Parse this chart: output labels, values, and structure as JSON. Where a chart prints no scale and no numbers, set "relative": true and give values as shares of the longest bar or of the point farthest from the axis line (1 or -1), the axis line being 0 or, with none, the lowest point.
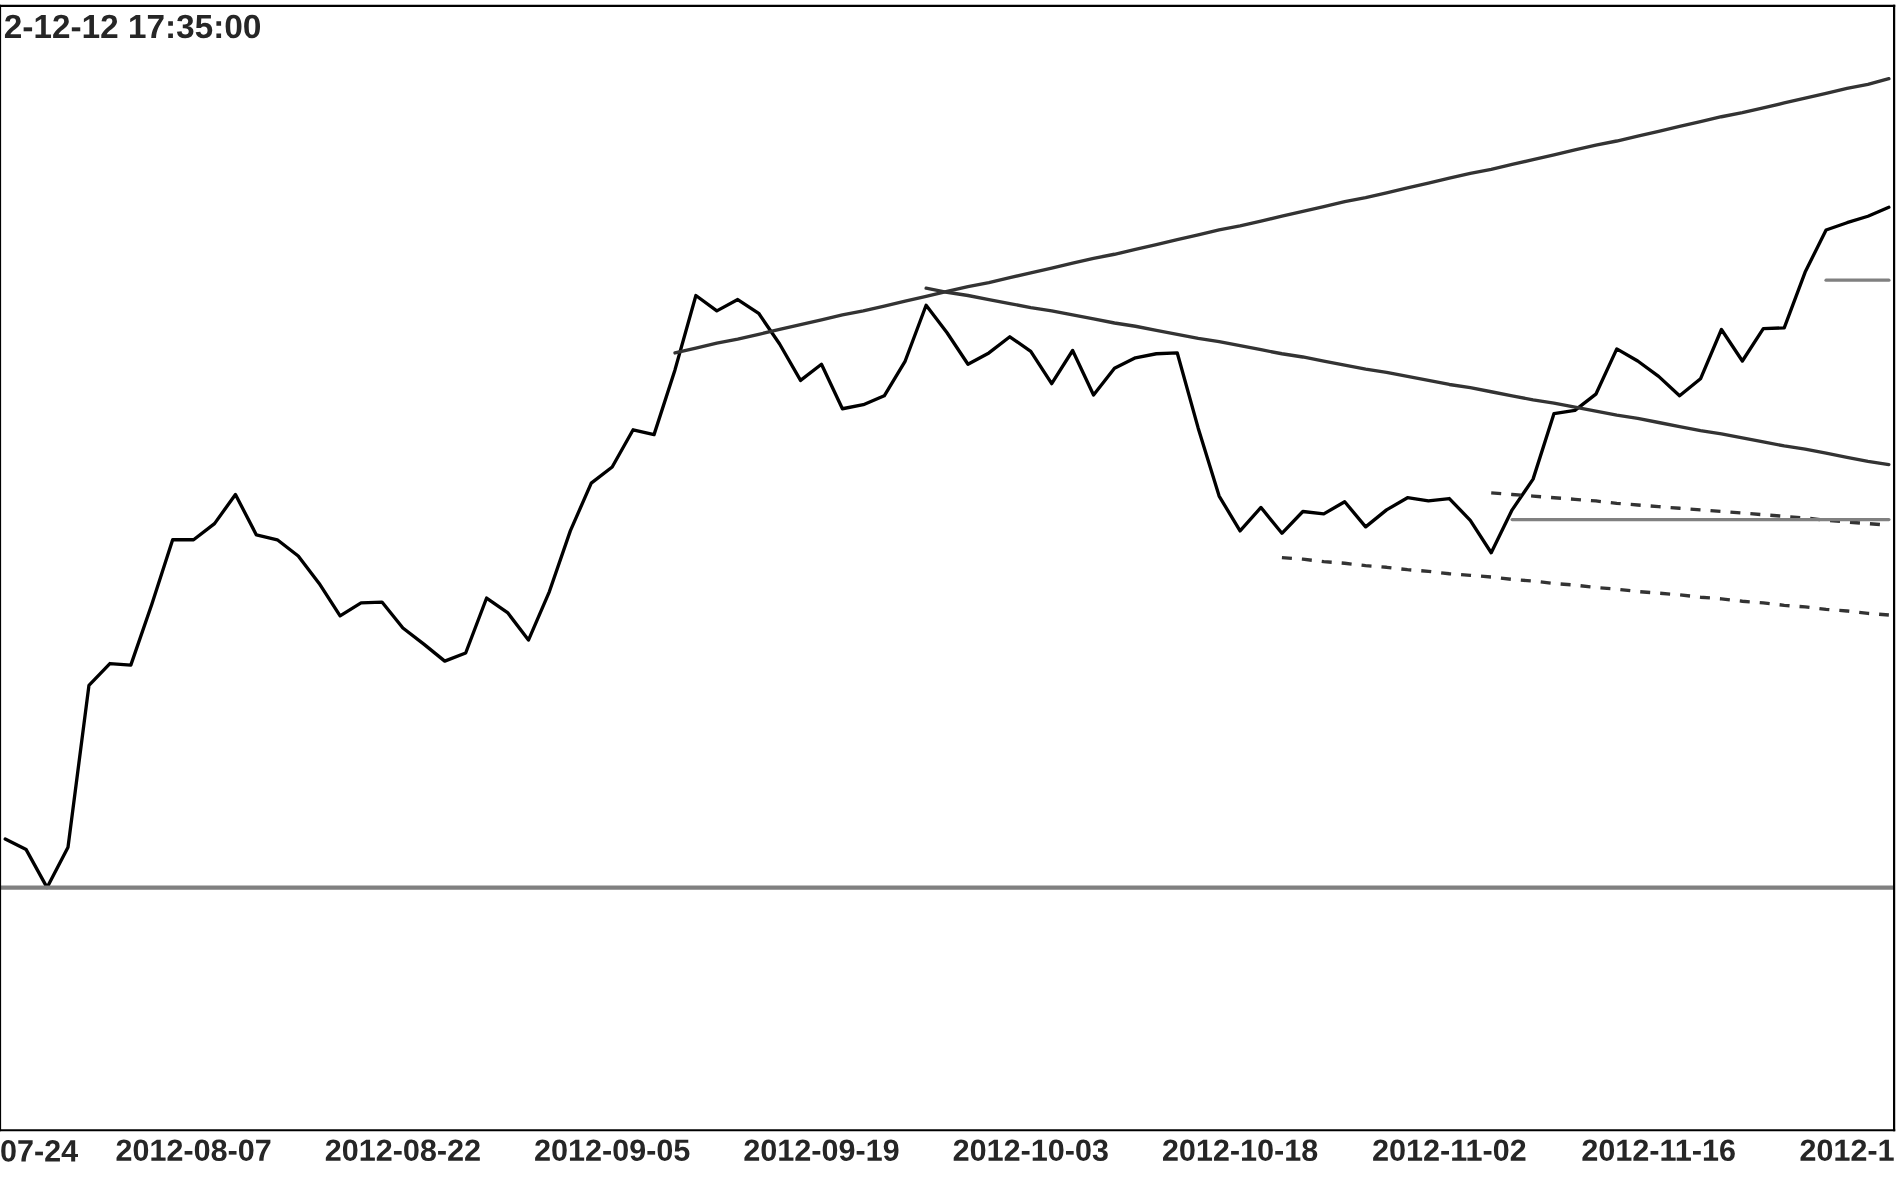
{
  "chart_data": {
    "type": "line",
    "relative": true,
    "title": "2-12-12 17:35:00",
    "annotations": [
      "07-24"
    ],
    "categories": [
      null,
      null,
      null,
      null,
      null,
      null,
      null,
      null,
      null,
      "2012-08-07",
      null,
      null,
      null,
      null,
      null,
      null,
      null,
      null,
      null,
      "2012-08-22",
      null,
      null,
      null,
      null,
      null,
      null,
      null,
      null,
      null,
      "2012-09-05",
      null,
      null,
      null,
      null,
      null,
      null,
      null,
      null,
      null,
      "2012-09-19",
      null,
      null,
      null,
      null,
      null,
      null,
      null,
      null,
      null,
      "2012-10-03",
      null,
      null,
      null,
      null,
      null,
      null,
      null,
      null,
      null,
      "2012-10-18",
      null,
      null,
      null,
      null,
      null,
      null,
      null,
      null,
      null,
      "2012-11-02",
      null,
      null,
      null,
      null,
      null,
      null,
      null,
      null,
      null,
      "2012-11-16",
      null,
      null,
      null,
      null,
      null,
      null,
      null,
      null,
      "2012-1",
      null,
      null
    ],
    "ref_lines": [
      {
        "axis": "y",
        "value": 0,
        "color": "#808080"
      }
    ],
    "series": [
      {
        "color": "#000000",
        "values": [
          0.06,
          0.047,
          0,
          0.05,
          0.25,
          0.277,
          0.275,
          0.35,
          0.43,
          0.43,
          0.45,
          0.486,
          0.436,
          0.43,
          0.41,
          0.376,
          0.336,
          0.352,
          0.353,
          0.321,
          0.301,
          0.28,
          0.29,
          0.358,
          0.34,
          0.306,
          0.366,
          0.441,
          0.5,
          0.52,
          0.566,
          0.56,
          0.64,
          0.732,
          0.713,
          0.727,
          0.71,
          0.672,
          0.627,
          0.647,
          0.592,
          0.597,
          0.608,
          0.651,
          0.72,
          0.686,
          0.647,
          0.661,
          0.681,
          0.663,
          0.623,
          0.664,
          0.609,
          0.642,
          0.655,
          0.66,
          0.661,
          0.568,
          0.484,
          0.441,
          0.47,
          0.438,
          0.465,
          0.462,
          0.477,
          0.446,
          0.467,
          0.482,
          0.478,
          0.481,
          0.454,
          0.414,
          0.467,
          0.505,
          0.586,
          0.59,
          0.61,
          0.666,
          0.651,
          0.632,
          0.608,
          0.629,
          0.69,
          0.651,
          0.691,
          0.692,
          0.761,
          0.813,
          0.822,
          0.83,
          0.841
        ]
      },
      {
        "color": "#333333",
        "values": [
          null,
          null,
          null,
          null,
          null,
          null,
          null,
          null,
          null,
          null,
          null,
          null,
          null,
          null,
          null,
          null,
          null,
          null,
          null,
          null,
          null,
          null,
          null,
          null,
          null,
          null,
          null,
          null,
          null,
          null,
          null,
          null,
          0.661,
          0.667,
          0.673,
          0.678,
          0.684,
          0.69,
          0.696,
          0.702,
          0.708,
          0.713,
          0.719,
          0.725,
          0.731,
          0.737,
          0.743,
          0.748,
          0.754,
          0.76,
          0.766,
          0.772,
          0.778,
          0.783,
          0.789,
          0.795,
          0.801,
          0.807,
          0.813,
          0.818,
          0.824,
          0.83,
          0.836,
          0.842,
          0.848,
          0.853,
          0.859,
          0.865,
          0.871,
          0.877,
          0.883,
          0.888,
          0.894,
          0.9,
          0.906,
          0.912,
          0.918,
          0.923,
          0.929,
          0.935,
          0.941,
          0.947,
          0.953,
          0.958,
          0.964,
          0.97,
          0.976,
          0.982,
          0.988,
          0.993,
          1.0
        ]
      },
      {
        "color": "#333333",
        "values": [
          null,
          null,
          null,
          null,
          null,
          null,
          null,
          null,
          null,
          null,
          null,
          null,
          null,
          null,
          null,
          null,
          null,
          null,
          null,
          null,
          null,
          null,
          null,
          null,
          null,
          null,
          null,
          null,
          null,
          null,
          null,
          null,
          null,
          null,
          null,
          null,
          null,
          null,
          null,
          null,
          null,
          null,
          null,
          null,
          0.741,
          0.736,
          0.732,
          0.727,
          0.722,
          0.717,
          0.713,
          0.708,
          0.703,
          0.698,
          0.694,
          0.689,
          0.684,
          0.679,
          0.675,
          0.67,
          0.665,
          0.66,
          0.656,
          0.651,
          0.646,
          0.641,
          0.637,
          0.632,
          0.627,
          0.622,
          0.618,
          0.613,
          0.608,
          0.603,
          0.599,
          0.594,
          0.589,
          0.584,
          0.58,
          0.575,
          0.57,
          0.565,
          0.561,
          0.556,
          0.551,
          0.546,
          0.542,
          0.537,
          0.532,
          0.527,
          0.523
        ]
      },
      {
        "color": "#333333",
        "line_style": "dashed",
        "values": [
          null,
          null,
          null,
          null,
          null,
          null,
          null,
          null,
          null,
          null,
          null,
          null,
          null,
          null,
          null,
          null,
          null,
          null,
          null,
          null,
          null,
          null,
          null,
          null,
          null,
          null,
          null,
          null,
          null,
          null,
          null,
          null,
          null,
          null,
          null,
          null,
          null,
          null,
          null,
          null,
          null,
          null,
          null,
          null,
          null,
          null,
          null,
          null,
          null,
          null,
          null,
          null,
          null,
          null,
          null,
          null,
          null,
          null,
          null,
          null,
          null,
          null,
          null,
          null,
          null,
          null,
          null,
          null,
          null,
          null,
          null,
          0.488,
          0.486,
          0.484,
          0.482,
          0.48,
          0.478,
          0.475,
          0.473,
          0.471,
          0.469,
          0.467,
          0.465,
          0.463,
          0.461,
          0.459,
          0.457,
          0.454,
          0.452,
          0.45,
          0.448
        ]
      },
      {
        "color": "#333333",
        "line_style": "dashed",
        "values": [
          null,
          null,
          null,
          null,
          null,
          null,
          null,
          null,
          null,
          null,
          null,
          null,
          null,
          null,
          null,
          null,
          null,
          null,
          null,
          null,
          null,
          null,
          null,
          null,
          null,
          null,
          null,
          null,
          null,
          null,
          null,
          null,
          null,
          null,
          null,
          null,
          null,
          null,
          null,
          null,
          null,
          null,
          null,
          null,
          null,
          null,
          null,
          null,
          null,
          null,
          null,
          null,
          null,
          null,
          null,
          null,
          null,
          null,
          null,
          null,
          null,
          0.408,
          0.406,
          0.403,
          0.401,
          0.398,
          0.396,
          0.393,
          0.391,
          0.388,
          0.386,
          0.384,
          0.381,
          0.379,
          0.376,
          0.374,
          0.371,
          0.369,
          0.366,
          0.364,
          0.362,
          0.359,
          0.357,
          0.354,
          0.352,
          0.349,
          0.347,
          0.344,
          0.342,
          0.339,
          0.337
        ]
      },
      {
        "color": "#808080",
        "values": [
          null,
          null,
          null,
          null,
          null,
          null,
          null,
          null,
          null,
          null,
          null,
          null,
          null,
          null,
          null,
          null,
          null,
          null,
          null,
          null,
          null,
          null,
          null,
          null,
          null,
          null,
          null,
          null,
          null,
          null,
          null,
          null,
          null,
          null,
          null,
          null,
          null,
          null,
          null,
          null,
          null,
          null,
          null,
          null,
          null,
          null,
          null,
          null,
          null,
          null,
          null,
          null,
          null,
          null,
          null,
          null,
          null,
          null,
          null,
          null,
          null,
          null,
          null,
          null,
          null,
          null,
          null,
          null,
          null,
          null,
          null,
          null,
          0.455,
          0.455,
          0.455,
          0.455,
          0.455,
          0.455,
          0.455,
          0.455,
          0.455,
          0.455,
          0.455,
          0.455,
          0.455,
          0.455,
          0.455,
          0.455,
          0.455,
          0.455,
          0.455
        ]
      },
      {
        "color": "#808080",
        "values": [
          null,
          null,
          null,
          null,
          null,
          null,
          null,
          null,
          null,
          null,
          null,
          null,
          null,
          null,
          null,
          null,
          null,
          null,
          null,
          null,
          null,
          null,
          null,
          null,
          null,
          null,
          null,
          null,
          null,
          null,
          null,
          null,
          null,
          null,
          null,
          null,
          null,
          null,
          null,
          null,
          null,
          null,
          null,
          null,
          null,
          null,
          null,
          null,
          null,
          null,
          null,
          null,
          null,
          null,
          null,
          null,
          null,
          null,
          null,
          null,
          null,
          null,
          null,
          null,
          null,
          null,
          null,
          null,
          null,
          null,
          null,
          null,
          null,
          null,
          null,
          null,
          null,
          null,
          null,
          null,
          null,
          null,
          null,
          null,
          null,
          null,
          null,
          0.751,
          0.751,
          0.751,
          0.751
        ]
      }
    ]
  }
}
